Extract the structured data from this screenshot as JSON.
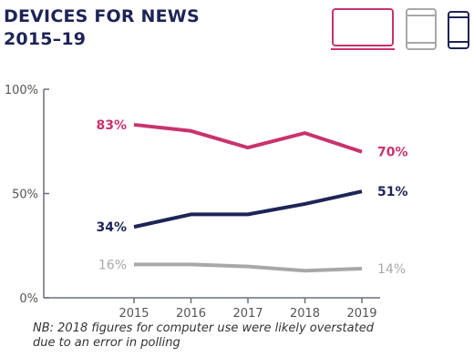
{
  "heading": {
    "line1": "DEVICES FOR NEWS",
    "line2": "2015–19"
  },
  "legend_icons": [
    {
      "icon": "laptop-icon",
      "color": "#c8336e"
    },
    {
      "icon": "tablet-icon",
      "color": "#a7a8aa"
    },
    {
      "icon": "smartphone-icon",
      "color": "#1e2456"
    }
  ],
  "colors": {
    "title": "#1e2456",
    "axis": "#6b6f7f",
    "tick_text": "#555555",
    "note": "#333333"
  },
  "chart_data": {
    "type": "line",
    "title": "DEVICES FOR NEWS 2015–19",
    "x": [
      "2015",
      "2016",
      "2017",
      "2018",
      "2019"
    ],
    "ylim": [
      0,
      100
    ],
    "yticks": [
      0,
      50,
      100
    ],
    "ytick_labels": [
      "0%",
      "50%",
      "100%"
    ],
    "grid": false,
    "series": [
      {
        "key": "computer",
        "values": [
          83,
          80,
          72,
          79,
          70
        ],
        "color": "#c8336e",
        "start_label": "83%",
        "end_label": "70%"
      },
      {
        "key": "smartphone",
        "values": [
          34,
          40,
          40,
          45,
          51
        ],
        "color": "#1e2456",
        "start_label": "34%",
        "end_label": "51%"
      },
      {
        "key": "tablet",
        "values": [
          16,
          16,
          15,
          13,
          14
        ],
        "color": "#a7a8aa",
        "start_label": "16%",
        "end_label": "14%"
      }
    ]
  },
  "footnote": {
    "line1": "NB: 2018 figures for computer use were likely overstated",
    "line2": "due to an error in polling"
  }
}
